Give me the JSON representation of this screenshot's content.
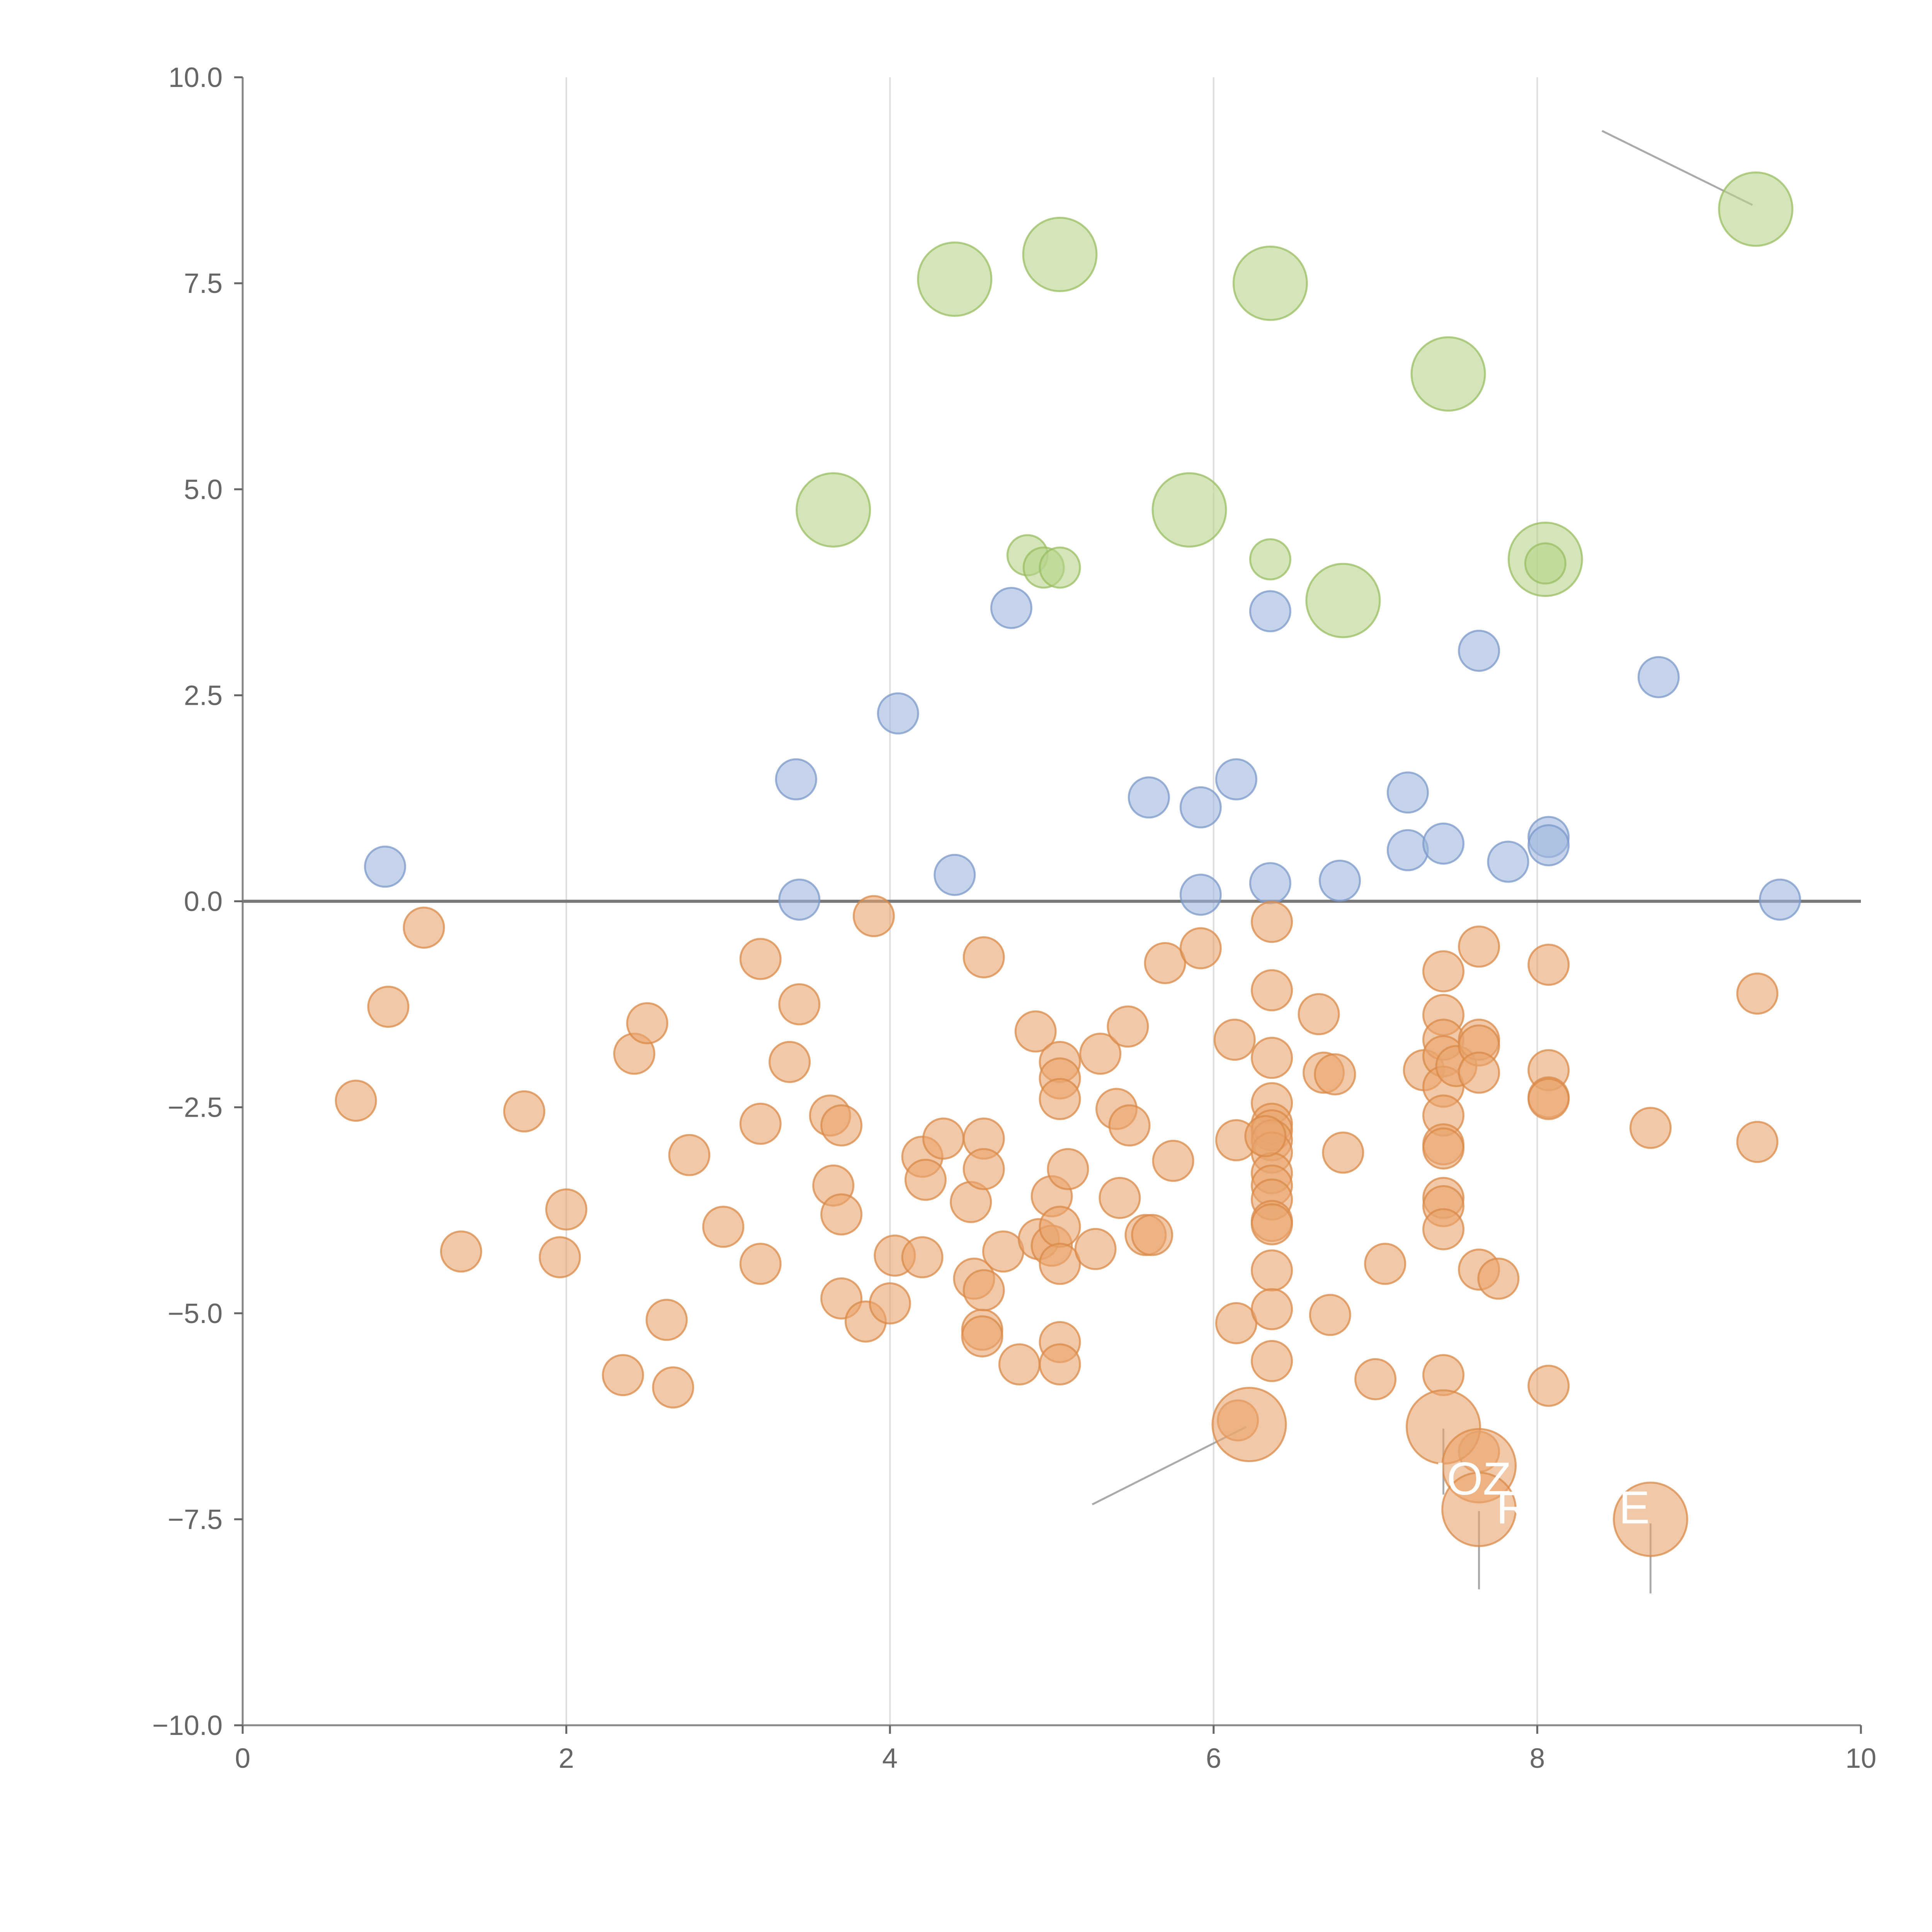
{
  "chart_data": {
    "type": "scatter",
    "title": "",
    "xlabel": "",
    "ylabel": "",
    "xlim": [
      0,
      10
    ],
    "ylim": [
      -10,
      10
    ],
    "grid": "vertical",
    "zero_line": true,
    "x_ticks": [
      "0",
      "2",
      "4",
      "6",
      "8",
      "10"
    ],
    "y_ticks": [
      "10.0",
      "7.5",
      "5.0",
      "2.5",
      "0.0",
      "−2.5",
      "−5.0",
      "−7.5",
      "−10.0"
    ],
    "x_tick_values": [
      0,
      2,
      4,
      6,
      8,
      10
    ],
    "y_tick_values": [
      10,
      7.5,
      5,
      2.5,
      0,
      -2.5,
      -5,
      -7.5,
      -10
    ],
    "colors": {
      "green": "#b6d38a",
      "green_stroke": "#98bd62",
      "blue": "#9fb7dd",
      "blue_stroke": "#7b98c9",
      "orange": "#e9a56e",
      "orange_stroke": "#d98a48",
      "axis": "#888888",
      "tick_text": "#666666",
      "grid": "#dddddd"
    },
    "series": [
      {
        "name": "green",
        "color_key": "green",
        "points": [
          [
            4.4,
            7.55,
            3
          ],
          [
            5.05,
            7.85,
            3
          ],
          [
            6.35,
            7.5,
            3
          ],
          [
            9.35,
            8.4,
            3
          ],
          [
            7.45,
            6.4,
            3
          ],
          [
            3.65,
            4.75,
            3
          ],
          [
            5.85,
            4.75,
            3
          ],
          [
            8.05,
            4.15,
            3
          ],
          [
            6.8,
            3.65,
            3
          ],
          [
            4.85,
            4.2,
            1
          ],
          [
            4.95,
            4.05,
            1
          ],
          [
            5.05,
            4.05,
            1
          ],
          [
            6.35,
            4.15,
            1
          ],
          [
            8.05,
            4.1,
            1
          ]
        ]
      },
      {
        "name": "blue",
        "color_key": "blue",
        "points": [
          [
            0.88,
            0.42,
            1
          ],
          [
            3.42,
            1.48,
            1
          ],
          [
            3.44,
            0.02,
            1
          ],
          [
            4.05,
            2.28,
            1
          ],
          [
            4.4,
            0.32,
            1
          ],
          [
            4.75,
            3.56,
            1
          ],
          [
            5.6,
            1.26,
            1
          ],
          [
            5.92,
            1.14,
            1
          ],
          [
            5.92,
            0.08,
            1
          ],
          [
            6.14,
            1.48,
            1
          ],
          [
            6.35,
            3.52,
            1
          ],
          [
            6.35,
            0.22,
            1
          ],
          [
            6.78,
            0.25,
            1
          ],
          [
            7.2,
            1.32,
            1
          ],
          [
            7.2,
            0.62,
            1
          ],
          [
            7.42,
            0.7,
            1
          ],
          [
            7.64,
            3.04,
            1
          ],
          [
            7.82,
            0.48,
            1
          ],
          [
            8.07,
            0.78,
            1
          ],
          [
            8.07,
            0.68,
            1
          ],
          [
            8.75,
            2.72,
            1
          ],
          [
            9.5,
            0.02,
            1
          ]
        ]
      },
      {
        "name": "orange",
        "color_key": "orange",
        "points": [
          [
            0.7,
            -2.42,
            1
          ],
          [
            0.9,
            -1.28,
            1
          ],
          [
            1.12,
            -0.32,
            1
          ],
          [
            1.35,
            -4.25,
            1
          ],
          [
            1.74,
            -2.55,
            1
          ],
          [
            1.96,
            -4.32,
            1
          ],
          [
            2.0,
            -3.74,
            1
          ],
          [
            2.35,
            -5.75,
            1
          ],
          [
            2.42,
            -1.85,
            1
          ],
          [
            2.5,
            -1.48,
            1
          ],
          [
            2.62,
            -5.08,
            1
          ],
          [
            2.66,
            -5.9,
            1
          ],
          [
            2.76,
            -3.08,
            1
          ],
          [
            2.97,
            -3.95,
            1
          ],
          [
            3.2,
            -0.7,
            1
          ],
          [
            3.2,
            -2.7,
            1
          ],
          [
            3.2,
            -4.4,
            1
          ],
          [
            3.38,
            -1.95,
            1
          ],
          [
            3.44,
            -1.25,
            1
          ],
          [
            3.63,
            -2.6,
            1
          ],
          [
            3.65,
            -3.45,
            1
          ],
          [
            3.7,
            -2.72,
            1
          ],
          [
            3.7,
            -3.8,
            1
          ],
          [
            3.7,
            -4.82,
            1
          ],
          [
            3.85,
            -5.1,
            1
          ],
          [
            3.9,
            -0.18,
            1
          ],
          [
            4.0,
            -4.88,
            1
          ],
          [
            4.03,
            -4.3,
            1
          ],
          [
            4.2,
            -3.1,
            1
          ],
          [
            4.2,
            -4.32,
            1
          ],
          [
            4.22,
            -3.38,
            1
          ],
          [
            4.33,
            -2.88,
            1
          ],
          [
            4.5,
            -3.65,
            1
          ],
          [
            4.52,
            -4.58,
            1
          ],
          [
            4.57,
            -5.2,
            1
          ],
          [
            4.57,
            -5.28,
            1
          ],
          [
            4.58,
            -0.68,
            1
          ],
          [
            4.58,
            -2.88,
            1
          ],
          [
            4.58,
            -3.25,
            1
          ],
          [
            4.58,
            -4.72,
            1
          ],
          [
            4.7,
            -4.25,
            1
          ],
          [
            4.8,
            -5.62,
            1
          ],
          [
            4.9,
            -1.58,
            1
          ],
          [
            4.92,
            -4.1,
            1
          ],
          [
            5.0,
            -3.58,
            1
          ],
          [
            5.0,
            -4.18,
            1
          ],
          [
            5.05,
            -1.95,
            1
          ],
          [
            5.05,
            -2.15,
            1
          ],
          [
            5.05,
            -2.4,
            1
          ],
          [
            5.05,
            -3.95,
            1
          ],
          [
            5.05,
            -4.4,
            1
          ],
          [
            5.05,
            -5.35,
            1
          ],
          [
            5.05,
            -5.62,
            1
          ],
          [
            5.1,
            -3.25,
            1
          ],
          [
            5.27,
            -4.22,
            1
          ],
          [
            5.3,
            -1.85,
            1
          ],
          [
            5.4,
            -2.52,
            1
          ],
          [
            5.42,
            -3.6,
            1
          ],
          [
            5.47,
            -1.52,
            1
          ],
          [
            5.48,
            -2.72,
            1
          ],
          [
            5.58,
            -4.05,
            1
          ],
          [
            5.62,
            -4.05,
            1
          ],
          [
            5.7,
            -0.75,
            1
          ],
          [
            5.75,
            -3.15,
            1
          ],
          [
            5.92,
            -0.57,
            1
          ],
          [
            6.13,
            -1.68,
            1
          ],
          [
            6.14,
            -2.9,
            1
          ],
          [
            6.14,
            -5.12,
            1
          ],
          [
            6.15,
            -6.3,
            1
          ],
          [
            6.36,
            -0.25,
            1
          ],
          [
            6.36,
            -1.08,
            1
          ],
          [
            6.36,
            -1.9,
            1
          ],
          [
            6.36,
            -2.45,
            1
          ],
          [
            6.36,
            -2.7,
            1
          ],
          [
            6.36,
            -2.78,
            1
          ],
          [
            6.36,
            -2.9,
            1
          ],
          [
            6.36,
            -3.05,
            1
          ],
          [
            6.36,
            -3.3,
            1
          ],
          [
            6.36,
            -3.45,
            1
          ],
          [
            6.36,
            -3.62,
            1
          ],
          [
            6.36,
            -3.88,
            1
          ],
          [
            6.36,
            -3.92,
            1
          ],
          [
            6.36,
            -4.48,
            1
          ],
          [
            6.36,
            -4.95,
            1
          ],
          [
            6.36,
            -5.58,
            1
          ],
          [
            6.32,
            -2.85,
            1
          ],
          [
            6.65,
            -1.37,
            1
          ],
          [
            6.68,
            -2.08,
            1
          ],
          [
            6.72,
            -5.02,
            1
          ],
          [
            6.75,
            -2.1,
            1
          ],
          [
            6.8,
            -3.05,
            1
          ],
          [
            7.0,
            -5.8,
            1
          ],
          [
            7.06,
            -4.4,
            1
          ],
          [
            7.3,
            -2.05,
            1
          ],
          [
            7.42,
            -0.85,
            1
          ],
          [
            7.42,
            -1.38,
            1
          ],
          [
            7.42,
            -1.68,
            1
          ],
          [
            7.42,
            -1.88,
            1
          ],
          [
            7.42,
            -2.25,
            1
          ],
          [
            7.42,
            -2.6,
            1
          ],
          [
            7.42,
            -2.95,
            1
          ],
          [
            7.42,
            -3.0,
            1
          ],
          [
            7.42,
            -3.6,
            1
          ],
          [
            7.42,
            -3.7,
            1
          ],
          [
            7.42,
            -3.98,
            1
          ],
          [
            7.42,
            -5.75,
            1
          ],
          [
            7.5,
            -2.0,
            1
          ],
          [
            7.64,
            -0.55,
            1
          ],
          [
            7.64,
            -1.68,
            1
          ],
          [
            7.64,
            -1.75,
            1
          ],
          [
            7.64,
            -2.08,
            1
          ],
          [
            7.64,
            -4.47,
            1
          ],
          [
            7.64,
            -6.68,
            1
          ],
          [
            7.76,
            -4.58,
            1
          ],
          [
            8.07,
            -0.77,
            1
          ],
          [
            8.07,
            -2.05,
            1
          ],
          [
            8.07,
            -2.38,
            1
          ],
          [
            8.07,
            -2.4,
            1
          ],
          [
            8.07,
            -5.88,
            1
          ],
          [
            8.7,
            -2.75,
            1
          ],
          [
            9.36,
            -1.12,
            1
          ],
          [
            9.36,
            -2.92,
            1
          ],
          [
            6.22,
            -6.35,
            3
          ],
          [
            7.42,
            -6.38,
            3
          ],
          [
            7.64,
            -6.85,
            3
          ],
          [
            7.64,
            -7.38,
            3
          ],
          [
            8.7,
            -7.5,
            3
          ]
        ]
      }
    ],
    "annotations": [
      {
        "text": "IOZ",
        "x": 7.6,
        "y": -7.2
      },
      {
        "text": "R",
        "x": 7.85,
        "y": -7.55
      },
      {
        "text": "E",
        "x": 8.6,
        "y": -7.55
      }
    ]
  }
}
